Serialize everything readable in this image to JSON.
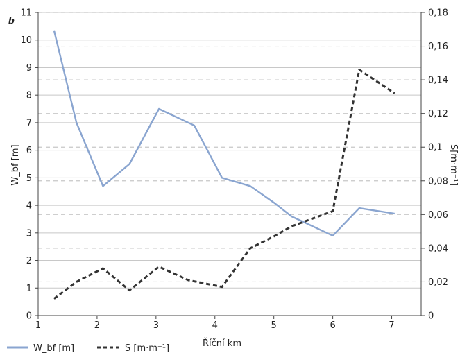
{
  "chart_data": {
    "type": "line",
    "panel_label": "b",
    "xlabel": "Říční km",
    "ylabel_left": "W_bf [m]",
    "ylabel_right": "S[m·m⁻¹]",
    "xlim": [
      1,
      7.5
    ],
    "ylim_left": [
      0,
      11
    ],
    "ylim_right": [
      0,
      0.18
    ],
    "x_ticks": [
      "1",
      "2",
      "3",
      "4",
      "5",
      "6",
      "7"
    ],
    "y_left_ticks": [
      "0",
      "1",
      "2",
      "3",
      "4",
      "5",
      "6",
      "7",
      "8",
      "9",
      "10",
      "11"
    ],
    "y_right_ticks": [
      "0",
      "0,02",
      "0,04",
      "0,06",
      "0,08",
      "0,1",
      "0,12",
      "0,14",
      "0,16",
      "0,18"
    ],
    "grid": true,
    "legend_position": "bottom-left",
    "series": [
      {
        "name": "W_bf [m]",
        "axis": "left",
        "style": "solid",
        "color": "#8aa5d0",
        "x": [
          1.27,
          1.65,
          2.1,
          2.55,
          3.05,
          3.65,
          4.12,
          4.6,
          5.0,
          5.3,
          6.0,
          6.45,
          7.05
        ],
        "y": [
          10.35,
          7.0,
          4.7,
          5.5,
          7.5,
          6.9,
          5.0,
          4.7,
          4.1,
          3.6,
          2.9,
          3.9,
          3.7
        ]
      },
      {
        "name": "S [m·m⁻¹]",
        "axis": "right",
        "style": "dashed",
        "color": "#333333",
        "x": [
          1.27,
          1.65,
          2.1,
          2.55,
          3.05,
          3.55,
          4.12,
          4.6,
          5.0,
          5.3,
          6.0,
          6.45,
          7.05
        ],
        "y": [
          0.01,
          0.02,
          0.028,
          0.015,
          0.029,
          0.021,
          0.017,
          0.04,
          0.047,
          0.053,
          0.062,
          0.146,
          0.132
        ]
      }
    ]
  }
}
